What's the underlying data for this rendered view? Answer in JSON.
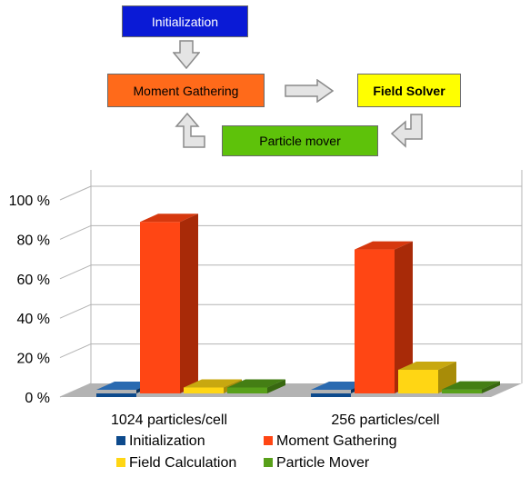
{
  "flow": {
    "initialization": "Initialization",
    "moment_gathering": "Moment Gathering",
    "field_solver": "Field Solver",
    "particle_mover": "Particle mover",
    "colors": {
      "initialization_fill": "#0a1ad6",
      "initialization_text": "#ffffff",
      "moment_fill": "#ff6a1a",
      "solver_fill": "#ffff00",
      "mover_fill": "#5ec20a",
      "arrow_fill": "#e4e4e4",
      "arrow_stroke": "#8a8a8a"
    }
  },
  "chart_data": {
    "type": "bar",
    "three_d": true,
    "categories": [
      "1024 particles/cell",
      "256 particles/cell"
    ],
    "series": [
      {
        "name": "Initialization",
        "values": [
          0,
          0
        ],
        "color": "#0d4a8c",
        "side": "#08305c",
        "top": "#2a6ab0"
      },
      {
        "name": "Moment Gathering",
        "values": [
          87,
          73
        ],
        "color": "#ff4614",
        "side": "#a82a08",
        "top": "#d6380e"
      },
      {
        "name": "Field Calculation",
        "values": [
          3,
          12
        ],
        "color": "#ffd614",
        "side": "#a88c08",
        "top": "#c8a810"
      },
      {
        "name": "Particle Mover",
        "values": [
          3,
          2
        ],
        "color": "#58a01a",
        "side": "#386810",
        "top": "#447e14"
      }
    ],
    "ylim": [
      0,
      100
    ],
    "yticks": [
      "0 %",
      "20 %",
      "40 %",
      "60 %",
      "80 %",
      "100 %"
    ],
    "ytick_values": [
      0,
      20,
      40,
      60,
      80,
      100
    ],
    "grid": true,
    "legend_position": "bottom",
    "colors": {
      "floor": "#b3b3b3",
      "wall": "#ffffff",
      "grid": "#b3b3b3"
    }
  }
}
